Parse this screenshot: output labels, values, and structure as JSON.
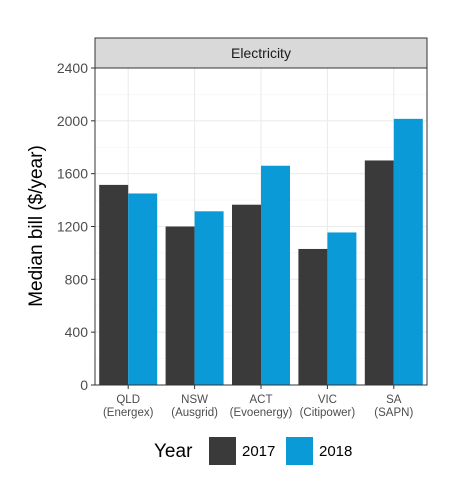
{
  "chart_data": {
    "type": "bar",
    "facet_title": "Electricity",
    "ylabel": "Median bill ($/year)",
    "xlabel": "",
    "ylim": [
      0,
      2400
    ],
    "yticks": [
      0,
      400,
      800,
      1200,
      1600,
      2000,
      2400
    ],
    "grid": true,
    "categories": [
      [
        "QLD",
        "(Energex)"
      ],
      [
        "NSW",
        "(Ausgrid)"
      ],
      [
        "ACT",
        "(Evoenergy)"
      ],
      [
        "VIC",
        "(Citipower)"
      ],
      [
        "SA",
        "(SAPN)"
      ]
    ],
    "series": [
      {
        "name": "2017",
        "color": "#3a3a3a",
        "values": [
          1515,
          1200,
          1365,
          1030,
          1700
        ]
      },
      {
        "name": "2018",
        "color": "#0a9ad8",
        "values": [
          1450,
          1315,
          1660,
          1155,
          2015
        ]
      }
    ],
    "legend": {
      "title": "Year",
      "position": "bottom"
    }
  }
}
